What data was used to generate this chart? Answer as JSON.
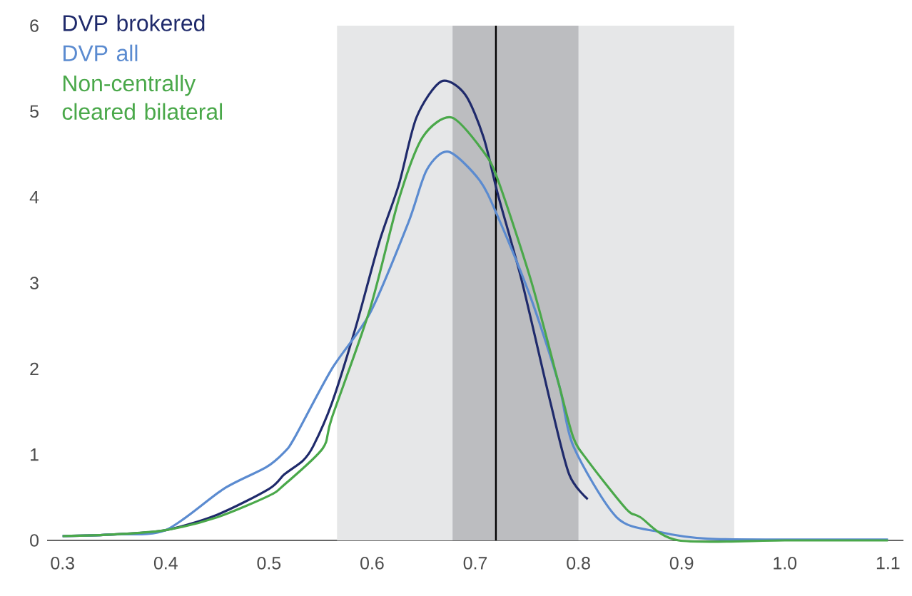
{
  "chart_data": {
    "type": "line",
    "xlim": [
      0.285,
      1.115
    ],
    "ylim": [
      0,
      6
    ],
    "xticks": [
      0.3,
      0.4,
      0.5,
      0.6,
      0.7,
      0.8,
      0.9,
      {
        "value": 1.0,
        "label": "1.0"
      },
      1.1
    ],
    "yticks": [
      0,
      1,
      2,
      3,
      4,
      5,
      6
    ],
    "legend": "top left",
    "bands": [
      {
        "axis": "x",
        "from": 0.566,
        "to": 0.951,
        "color": "#e6e7e8"
      },
      {
        "axis": "x",
        "from": 0.678,
        "to": 0.8,
        "color": "#bcbdc0"
      }
    ],
    "ref_lines": [
      {
        "axis": "x",
        "value": 0.72,
        "color": "#000000"
      }
    ],
    "series": [
      {
        "name": "DVP brokered",
        "color": "#1f2a6b",
        "x": [
          0.3,
          0.35,
          0.4,
          0.45,
          0.5,
          0.515,
          0.533,
          0.543,
          0.561,
          0.584,
          0.607,
          0.626,
          0.643,
          0.667,
          0.69,
          0.708,
          0.722,
          0.745,
          0.773,
          0.791,
          0.809
        ],
        "values": [
          0.05,
          0.07,
          0.12,
          0.3,
          0.6,
          0.77,
          0.93,
          1.1,
          1.6,
          2.48,
          3.48,
          4.15,
          4.93,
          5.35,
          5.2,
          4.7,
          4.03,
          3.03,
          1.6,
          0.77,
          0.48
        ]
      },
      {
        "name": "DVP all",
        "color": "#5b8bd0",
        "x": [
          0.3,
          0.35,
          0.4,
          0.456,
          0.497,
          0.515,
          0.525,
          0.561,
          0.598,
          0.635,
          0.653,
          0.674,
          0.704,
          0.722,
          0.754,
          0.781,
          0.795,
          0.837,
          0.878,
          0.925,
          1.0,
          1.1
        ],
        "values": [
          0.05,
          0.07,
          0.12,
          0.6,
          0.85,
          1.03,
          1.2,
          2.0,
          2.65,
          3.7,
          4.32,
          4.53,
          4.2,
          3.77,
          2.82,
          1.82,
          1.1,
          0.27,
          0.1,
          0.02,
          0.01,
          0.01
        ]
      },
      {
        "name": "Non-centrally cleared bilateral",
        "color": "#4aa84a",
        "x": [
          0.3,
          0.35,
          0.4,
          0.45,
          0.5,
          0.515,
          0.552,
          0.561,
          0.598,
          0.626,
          0.649,
          0.677,
          0.708,
          0.722,
          0.754,
          0.781,
          0.795,
          0.809,
          0.846,
          0.86,
          0.897,
          1.0,
          1.1
        ],
        "values": [
          0.05,
          0.07,
          0.12,
          0.27,
          0.52,
          0.65,
          1.07,
          1.43,
          2.7,
          3.98,
          4.7,
          4.93,
          4.53,
          4.2,
          3.03,
          1.82,
          1.2,
          0.93,
          0.37,
          0.27,
          0.0,
          0.0,
          0.0
        ]
      }
    ]
  }
}
